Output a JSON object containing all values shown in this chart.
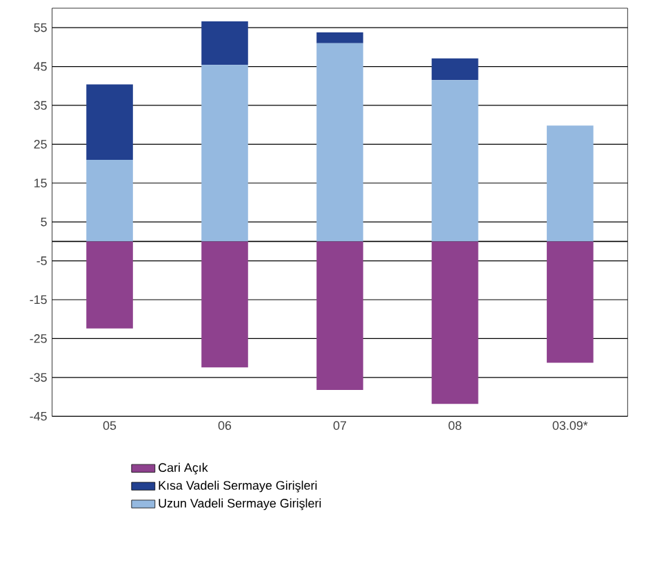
{
  "chart_data": {
    "type": "bar",
    "stacked": true,
    "categories": [
      "05",
      "06",
      "07",
      "08",
      "03.09*"
    ],
    "series": [
      {
        "name": "Uzun Vadeli Sermaye Girişleri",
        "color": "#95b9e0",
        "values": [
          21.0,
          45.4,
          51.0,
          41.5,
          29.8
        ]
      },
      {
        "name": "Kısa Vadeli Sermaye Girişleri",
        "color": "#22408f",
        "values": [
          19.4,
          11.2,
          2.8,
          5.6,
          0
        ]
      },
      {
        "name": "Cari Açık",
        "color": "#8e418e",
        "values": [
          -22.4,
          -32.4,
          -38.2,
          -41.8,
          -31.2
        ]
      }
    ],
    "ylim": [
      -45,
      60
    ],
    "yticks": [
      -45,
      -35,
      -25,
      -15,
      -5,
      5,
      15,
      25,
      35,
      45,
      55
    ],
    "grid": "y",
    "legend": "bottom",
    "ref_lines": [
      {
        "axis": "y",
        "value": 0
      }
    ]
  }
}
